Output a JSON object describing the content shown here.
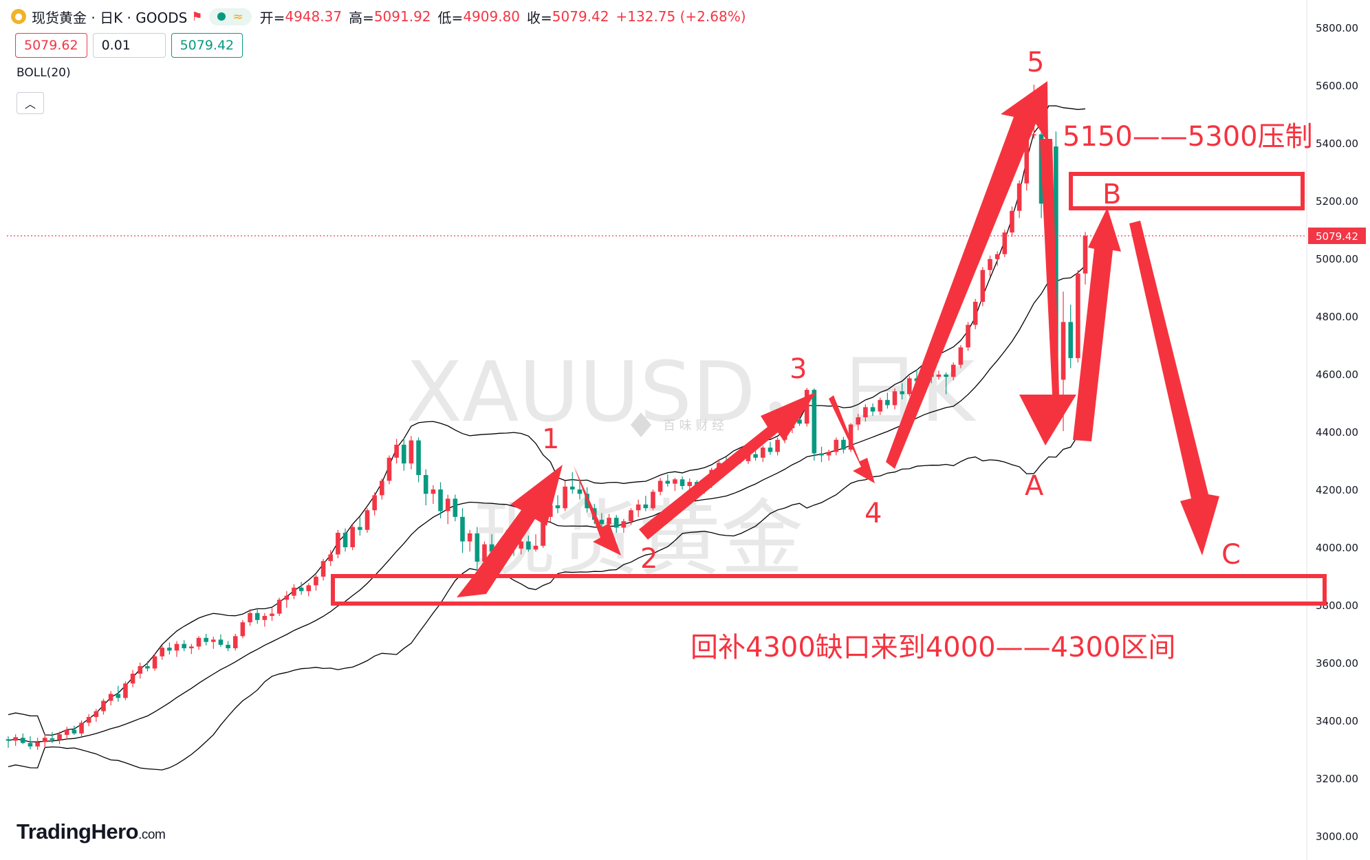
{
  "header": {
    "symbol_title": "现货黄金 · 日K · GOODS",
    "open_label": "开=",
    "open_value": "4948.37",
    "high_label": "高=",
    "high_value": "5091.92",
    "low_label": "低=",
    "low_value": "4909.80",
    "close_label": "收=",
    "close_value": "5079.42",
    "change": "+132.75 (+2.68%)",
    "logo_icon": "gold-coin-icon",
    "flag_icon": "flag-icon"
  },
  "trade": {
    "sell_price": "5079.62",
    "quantity": "0.01",
    "buy_price": "5079.42"
  },
  "indicator": {
    "label": "BOLL(20)"
  },
  "brand": {
    "name": "TradingHero",
    "suffix": ".com"
  },
  "watermark": {
    "symbol": "XAUUSD，日K",
    "name": "现货黄金",
    "small": "百 味 财 经"
  },
  "price_axis": {
    "ticks": [
      "5800.00",
      "5600.00",
      "5400.00",
      "5200.00",
      "5000.00",
      "4800.00",
      "4600.00",
      "4400.00",
      "4200.00",
      "4000.00",
      "3800.00",
      "3600.00",
      "3400.00",
      "3200.00",
      "3000.00"
    ],
    "last_price": "5079.42"
  },
  "annotations": {
    "wave_labels": [
      "1",
      "2",
      "3",
      "4",
      "5",
      "A",
      "B",
      "C"
    ],
    "resistance_text": "5150——5300压制",
    "support_text": "回补4300缺口来到4000——4300区间"
  },
  "colors": {
    "up": "#f23645",
    "down": "#089981",
    "annotation": "#f5333f",
    "band": "#000000"
  },
  "chart_data": {
    "type": "candlestick",
    "title": "XAUUSD 日K",
    "ylim": [
      3000,
      5800
    ],
    "indicator": "BOLL(20)",
    "last": {
      "open": 4948.37,
      "high": 5091.92,
      "low": 4909.8,
      "close": 5079.42,
      "change": 132.75,
      "change_pct": 2.68
    },
    "candles": [
      [
        3335,
        3345,
        3305,
        3330
      ],
      [
        3330,
        3352,
        3312,
        3342
      ],
      [
        3340,
        3355,
        3318,
        3322
      ],
      [
        3322,
        3345,
        3300,
        3310
      ],
      [
        3310,
        3340,
        3298,
        3325
      ],
      [
        3325,
        3355,
        3305,
        3340
      ],
      [
        3338,
        3360,
        3322,
        3332
      ],
      [
        3332,
        3362,
        3318,
        3352
      ],
      [
        3350,
        3378,
        3335,
        3368
      ],
      [
        3368,
        3382,
        3350,
        3355
      ],
      [
        3355,
        3400,
        3345,
        3392
      ],
      [
        3392,
        3422,
        3380,
        3412
      ],
      [
        3412,
        3440,
        3395,
        3432
      ],
      [
        3432,
        3475,
        3420,
        3468
      ],
      [
        3468,
        3502,
        3452,
        3492
      ],
      [
        3492,
        3520,
        3465,
        3478
      ],
      [
        3478,
        3535,
        3470,
        3528
      ],
      [
        3528,
        3575,
        3515,
        3562
      ],
      [
        3562,
        3600,
        3545,
        3588
      ],
      [
        3588,
        3605,
        3570,
        3580
      ],
      [
        3580,
        3630,
        3572,
        3622
      ],
      [
        3622,
        3660,
        3610,
        3652
      ],
      [
        3652,
        3670,
        3628,
        3642
      ],
      [
        3642,
        3675,
        3620,
        3665
      ],
      [
        3665,
        3678,
        3640,
        3650
      ],
      [
        3650,
        3665,
        3630,
        3656
      ],
      [
        3656,
        3692,
        3645,
        3686
      ],
      [
        3686,
        3700,
        3660,
        3672
      ],
      [
        3672,
        3690,
        3648,
        3680
      ],
      [
        3680,
        3698,
        3655,
        3662
      ],
      [
        3662,
        3675,
        3640,
        3650
      ],
      [
        3650,
        3700,
        3642,
        3692
      ],
      [
        3692,
        3748,
        3685,
        3740
      ],
      [
        3740,
        3785,
        3728,
        3772
      ],
      [
        3772,
        3790,
        3735,
        3748
      ],
      [
        3748,
        3772,
        3725,
        3762
      ],
      [
        3762,
        3790,
        3745,
        3770
      ],
      [
        3770,
        3825,
        3762,
        3818
      ],
      [
        3818,
        3848,
        3790,
        3832
      ],
      [
        3832,
        3872,
        3820,
        3860
      ],
      [
        3860,
        3880,
        3835,
        3848
      ],
      [
        3848,
        3875,
        3830,
        3868
      ],
      [
        3868,
        3905,
        3850,
        3898
      ],
      [
        3898,
        3960,
        3885,
        3952
      ],
      [
        3952,
        3990,
        3935,
        3975
      ],
      [
        3975,
        4060,
        3962,
        4050
      ],
      [
        4050,
        4065,
        3985,
        4000
      ],
      [
        4000,
        4080,
        3990,
        4070
      ],
      [
        4070,
        4105,
        4040,
        4060
      ],
      [
        4060,
        4135,
        4050,
        4128
      ],
      [
        4128,
        4190,
        4110,
        4180
      ],
      [
        4180,
        4238,
        4165,
        4230
      ],
      [
        4230,
        4318,
        4218,
        4310
      ],
      [
        4310,
        4375,
        4290,
        4355
      ],
      [
        4355,
        4378,
        4265,
        4290
      ],
      [
        4290,
        4385,
        4270,
        4370
      ],
      [
        4370,
        4380,
        4225,
        4250
      ],
      [
        4250,
        4270,
        4145,
        4185
      ],
      [
        4185,
        4215,
        4150,
        4200
      ],
      [
        4200,
        4225,
        4100,
        4125
      ],
      [
        4125,
        4182,
        4080,
        4168
      ],
      [
        4168,
        4182,
        4090,
        4105
      ],
      [
        4105,
        4135,
        3980,
        4020
      ],
      [
        4020,
        4060,
        3985,
        4048
      ],
      [
        4048,
        4070,
        3920,
        3950
      ],
      [
        3950,
        4020,
        3930,
        4010
      ],
      [
        4010,
        4045,
        3968,
        3985
      ],
      [
        3985,
        4020,
        3950,
        4012
      ],
      [
        4012,
        4060,
        3992,
        4040
      ],
      [
        4040,
        4060,
        3970,
        3995
      ],
      [
        3995,
        4032,
        3975,
        4020
      ],
      [
        4020,
        4040,
        3985,
        3992
      ],
      [
        3992,
        4045,
        3985,
        4005
      ],
      [
        4005,
        4110,
        3998,
        4105
      ],
      [
        4105,
        4158,
        4088,
        4145
      ],
      [
        4145,
        4180,
        4118,
        4135
      ],
      [
        4135,
        4230,
        4125,
        4210
      ],
      [
        4210,
        4260,
        4185,
        4200
      ],
      [
        4200,
        4235,
        4165,
        4185
      ],
      [
        4185,
        4208,
        4120,
        4135
      ],
      [
        4135,
        4150,
        4080,
        4095
      ],
      [
        4095,
        4118,
        4062,
        4080
      ],
      [
        4080,
        4115,
        4058,
        4102
      ],
      [
        4102,
        4112,
        4050,
        4068
      ],
      [
        4068,
        4098,
        4050,
        4090
      ],
      [
        4090,
        4135,
        4078,
        4128
      ],
      [
        4128,
        4165,
        4105,
        4148
      ],
      [
        4148,
        4178,
        4125,
        4135
      ],
      [
        4135,
        4200,
        4128,
        4192
      ],
      [
        4192,
        4240,
        4180,
        4230
      ],
      [
        4230,
        4252,
        4210,
        4220
      ],
      [
        4220,
        4240,
        4195,
        4235
      ],
      [
        4235,
        4245,
        4200,
        4212
      ],
      [
        4212,
        4238,
        4190,
        4226
      ],
      [
        4226,
        4232,
        4188,
        4198
      ],
      [
        4198,
        4220,
        4185,
        4215
      ],
      [
        4215,
        4275,
        4205,
        4268
      ],
      [
        4268,
        4305,
        4250,
        4292
      ],
      [
        4292,
        4312,
        4268,
        4280
      ],
      [
        4280,
        4320,
        4270,
        4312
      ],
      [
        4312,
        4330,
        4290,
        4298
      ],
      [
        4298,
        4332,
        4288,
        4322
      ],
      [
        4322,
        4340,
        4300,
        4310
      ],
      [
        4310,
        4352,
        4295,
        4345
      ],
      [
        4345,
        4365,
        4320,
        4330
      ],
      [
        4330,
        4380,
        4318,
        4372
      ],
      [
        4372,
        4420,
        4360,
        4412
      ],
      [
        4412,
        4450,
        4395,
        4442
      ],
      [
        4442,
        4470,
        4420,
        4428
      ],
      [
        4428,
        4552,
        4418,
        4545
      ],
      [
        4545,
        4550,
        4300,
        4325
      ],
      [
        4325,
        4348,
        4295,
        4318
      ],
      [
        4318,
        4338,
        4300,
        4330
      ],
      [
        4330,
        4380,
        4318,
        4372
      ],
      [
        4372,
        4382,
        4325,
        4338
      ],
      [
        4338,
        4430,
        4330,
        4425
      ],
      [
        4425,
        4462,
        4405,
        4450
      ],
      [
        4450,
        4495,
        4435,
        4485
      ],
      [
        4485,
        4498,
        4455,
        4470
      ],
      [
        4470,
        4518,
        4458,
        4510
      ],
      [
        4510,
        4535,
        4480,
        4492
      ],
      [
        4492,
        4550,
        4478,
        4540
      ],
      [
        4540,
        4568,
        4512,
        4530
      ],
      [
        4530,
        4592,
        4522,
        4585
      ],
      [
        4585,
        4615,
        4560,
        4575
      ],
      [
        4575,
        4612,
        4560,
        4605
      ],
      [
        4605,
        4618,
        4568,
        4590
      ],
      [
        4590,
        4612,
        4580,
        4598
      ],
      [
        4598,
        4605,
        4530,
        4590
      ],
      [
        4590,
        4640,
        4578,
        4632
      ],
      [
        4632,
        4700,
        4620,
        4692
      ],
      [
        4692,
        4780,
        4680,
        4770
      ],
      [
        4770,
        4860,
        4755,
        4850
      ],
      [
        4850,
        4970,
        4835,
        4960
      ],
      [
        4960,
        5010,
        4938,
        4998
      ],
      [
        4998,
        5025,
        4975,
        5015
      ],
      [
        5015,
        5100,
        5005,
        5090
      ],
      [
        5090,
        5180,
        5075,
        5165
      ],
      [
        5165,
        5270,
        5140,
        5260
      ],
      [
        5260,
        5440,
        5235,
        5430
      ],
      [
        5430,
        5602,
        5415,
        5430
      ],
      [
        5430,
        5450,
        5140,
        5190
      ],
      [
        5190,
        5395,
        5170,
        5388
      ],
      [
        5388,
        5440,
        4560,
        4580
      ],
      [
        4580,
        4885,
        4402,
        4780
      ],
      [
        4780,
        4840,
        4620,
        4655
      ],
      [
        4655,
        4960,
        4640,
        4948
      ],
      [
        4948,
        5092,
        4910,
        5079
      ]
    ]
  }
}
